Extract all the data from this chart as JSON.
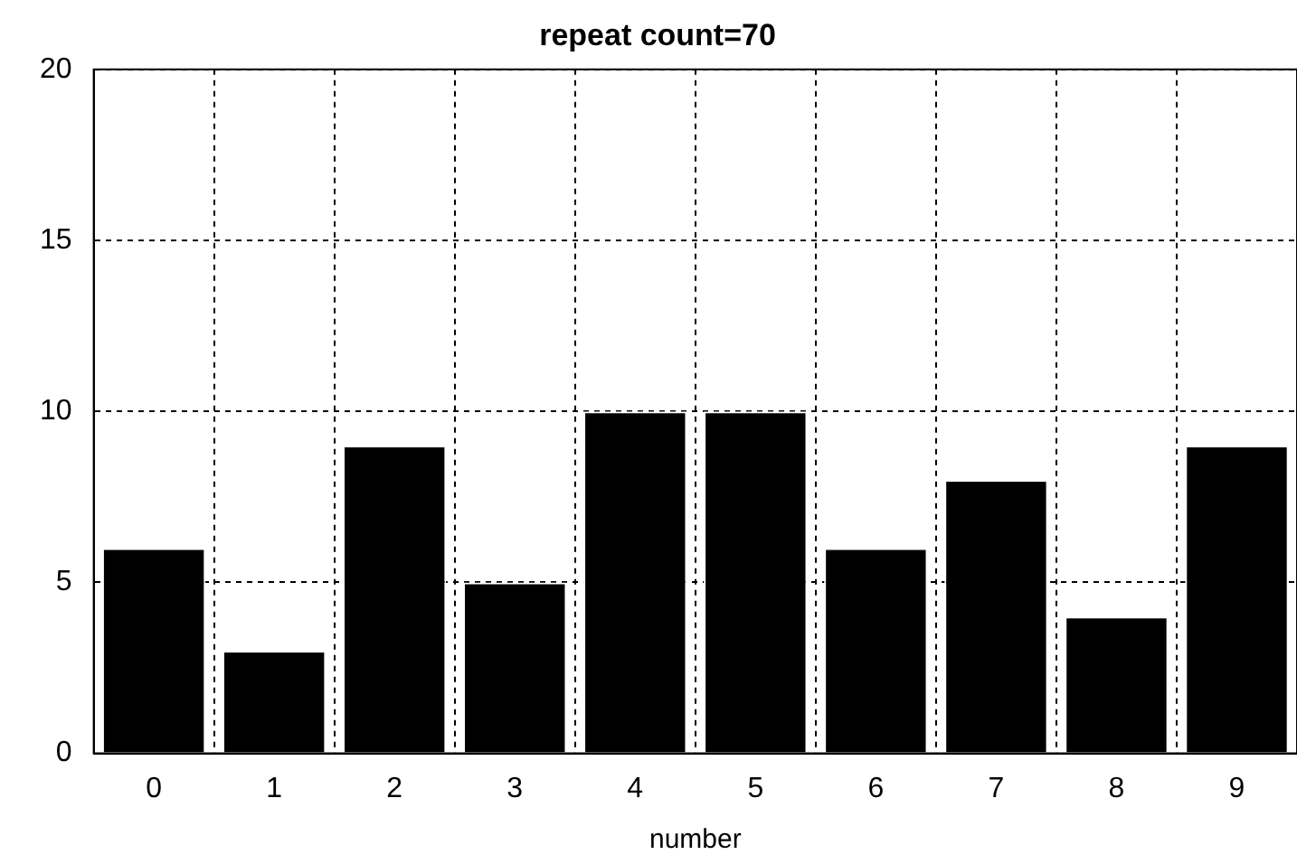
{
  "chart_data": {
    "type": "bar",
    "title": "repeat count=70",
    "xlabel": "number",
    "categories": [
      "0",
      "1",
      "2",
      "3",
      "4",
      "5",
      "6",
      "7",
      "8",
      "9"
    ],
    "values": [
      6,
      3,
      9,
      5,
      10,
      10,
      6,
      8,
      4,
      9
    ],
    "color": "#000000",
    "ylim": [
      0,
      20
    ],
    "yticks": [
      0,
      5,
      10,
      15,
      20
    ],
    "grid": true
  }
}
